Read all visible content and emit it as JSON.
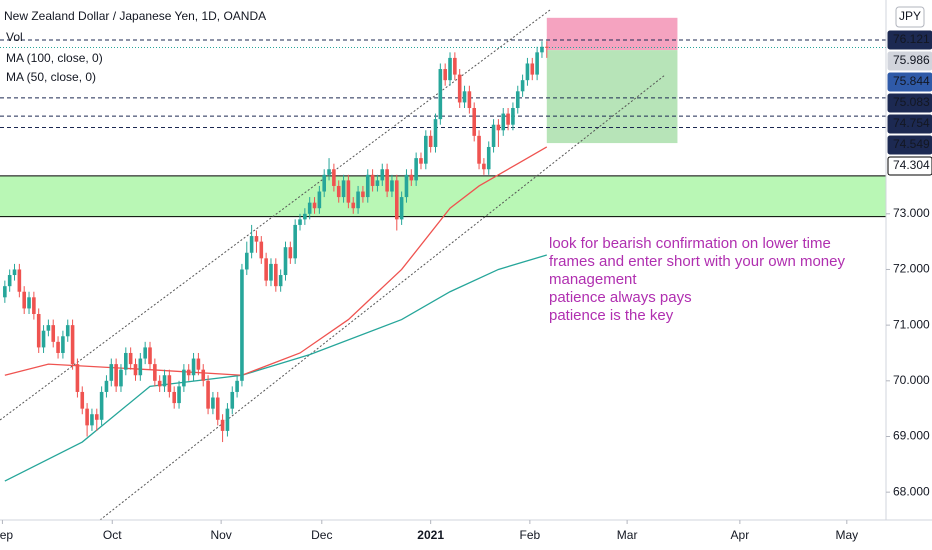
{
  "chart_data": {
    "type": "candlestick",
    "title": "New Zealand Dollar / Japanese Yen, 1D, OANDA",
    "volume_label": "Vol",
    "currency": "JPY",
    "up_color": "#26a69a",
    "down_color": "#ef5350",
    "open": [
      71.5,
      71.7,
      71.9,
      72.0,
      71.6,
      71.3,
      71.5,
      71.2,
      70.6,
      70.9,
      71.0,
      70.7,
      70.5,
      70.8,
      71.0,
      70.3,
      69.8,
      69.5,
      69.2,
      69.4,
      69.3,
      69.8,
      70.0,
      70.3,
      69.9,
      70.2,
      70.5,
      70.3,
      70.1,
      70.4,
      70.6,
      70.3,
      70.0,
      69.9,
      70.1,
      69.8,
      69.6,
      69.9,
      70.2,
      70.1,
      70.4,
      70.2,
      70.0,
      69.5,
      69.7,
      69.3,
      69.1,
      69.5,
      69.8,
      70.0,
      72.0,
      72.3,
      72.6,
      72.5,
      72.2,
      71.8,
      72.1,
      71.7,
      71.9,
      72.4,
      72.2,
      72.8,
      72.9,
      73.0,
      73.2,
      73.1,
      73.4,
      73.7,
      73.8,
      73.5,
      73.3,
      73.6,
      73.2,
      73.1,
      73.4,
      73.3,
      73.7,
      73.5,
      73.6,
      73.8,
      73.4,
      73.6,
      72.9,
      73.3,
      73.7,
      73.6,
      74.0,
      73.9,
      74.4,
      74.2,
      74.7,
      75.6,
      75.4,
      75.8,
      75.5,
      75.0,
      75.2,
      74.9,
      74.4,
      73.9,
      73.8,
      74.2,
      74.6,
      74.5,
      74.8,
      74.6,
      74.9,
      75.2,
      75.4,
      75.7,
      75.5,
      75.9,
      76.0
    ],
    "high": [
      71.8,
      72.0,
      72.1,
      72.1,
      71.7,
      71.6,
      71.6,
      71.3,
      71.0,
      71.1,
      71.1,
      70.8,
      70.9,
      71.1,
      71.1,
      70.4,
      69.9,
      69.6,
      69.5,
      69.5,
      69.9,
      70.1,
      70.4,
      70.4,
      70.3,
      70.6,
      70.6,
      70.4,
      70.5,
      70.7,
      70.7,
      70.4,
      70.1,
      70.2,
      70.2,
      69.9,
      70.0,
      70.3,
      70.3,
      70.5,
      70.5,
      70.3,
      70.1,
      69.8,
      69.8,
      69.4,
      69.6,
      69.9,
      70.1,
      72.1,
      72.5,
      72.8,
      72.7,
      72.6,
      72.3,
      72.2,
      72.2,
      72.0,
      72.5,
      72.5,
      72.9,
      73.0,
      73.1,
      73.3,
      73.3,
      73.5,
      73.8,
      74.0,
      73.9,
      73.6,
      73.7,
      73.7,
      73.3,
      73.5,
      73.5,
      73.8,
      73.8,
      73.7,
      73.9,
      73.9,
      73.7,
      73.7,
      73.4,
      73.8,
      73.8,
      74.1,
      74.1,
      74.5,
      74.5,
      74.8,
      75.7,
      75.7,
      75.9,
      75.9,
      75.6,
      75.3,
      75.3,
      75.0,
      74.5,
      74.0,
      74.3,
      74.7,
      74.7,
      74.9,
      74.9,
      75.0,
      75.3,
      75.5,
      75.8,
      75.8,
      76.0,
      76.1,
      76.1
    ],
    "low": [
      71.4,
      71.6,
      71.8,
      71.5,
      71.2,
      71.2,
      71.1,
      70.5,
      70.5,
      70.8,
      70.6,
      70.4,
      70.4,
      70.7,
      70.2,
      69.7,
      69.4,
      69.0,
      69.1,
      69.1,
      69.2,
      69.7,
      69.9,
      69.8,
      69.8,
      70.1,
      70.2,
      70.0,
      70.0,
      70.3,
      70.2,
      69.9,
      69.8,
      69.8,
      69.7,
      69.5,
      69.5,
      69.8,
      70.0,
      70.0,
      70.1,
      69.9,
      69.4,
      69.4,
      69.2,
      68.9,
      69.0,
      69.4,
      69.7,
      69.9,
      71.9,
      72.2,
      72.3,
      72.1,
      71.7,
      71.7,
      71.6,
      71.6,
      71.8,
      72.1,
      72.1,
      72.7,
      72.8,
      72.9,
      73.0,
      73.0,
      73.3,
      73.6,
      73.4,
      73.2,
      73.2,
      73.1,
      73.0,
      73.0,
      73.2,
      73.2,
      73.4,
      73.4,
      73.5,
      73.3,
      73.3,
      72.7,
      72.8,
      73.2,
      73.5,
      73.5,
      73.8,
      73.8,
      74.1,
      74.1,
      74.6,
      75.3,
      75.3,
      75.4,
      74.9,
      74.9,
      74.8,
      74.3,
      73.8,
      73.7,
      73.7,
      74.1,
      74.2,
      74.4,
      74.5,
      74.5,
      74.8,
      75.1,
      75.3,
      75.4,
      75.4,
      75.8,
      75.8
    ],
    "close": [
      71.7,
      71.9,
      72.0,
      71.6,
      71.3,
      71.5,
      71.2,
      70.6,
      70.9,
      71.0,
      70.7,
      70.5,
      70.8,
      71.0,
      70.3,
      69.8,
      69.5,
      69.2,
      69.4,
      69.3,
      69.8,
      70.0,
      70.3,
      69.9,
      70.2,
      70.5,
      70.3,
      70.1,
      70.4,
      70.6,
      70.3,
      70.0,
      69.9,
      70.1,
      69.8,
      69.6,
      69.9,
      70.2,
      70.1,
      70.4,
      70.2,
      70.0,
      69.5,
      69.7,
      69.3,
      69.1,
      69.5,
      69.8,
      70.0,
      72.0,
      72.3,
      72.6,
      72.5,
      72.2,
      71.8,
      72.1,
      71.7,
      71.9,
      72.4,
      72.2,
      72.8,
      72.9,
      73.0,
      73.2,
      73.1,
      73.4,
      73.7,
      73.8,
      73.5,
      73.3,
      73.6,
      73.2,
      73.1,
      73.4,
      73.3,
      73.7,
      73.5,
      73.6,
      73.8,
      73.4,
      73.6,
      72.9,
      73.3,
      73.7,
      73.6,
      74.0,
      73.9,
      74.4,
      74.2,
      74.7,
      75.6,
      75.4,
      75.8,
      75.5,
      75.0,
      75.2,
      74.9,
      74.4,
      73.9,
      73.8,
      74.2,
      74.6,
      74.5,
      74.8,
      74.6,
      74.9,
      75.2,
      75.4,
      75.7,
      75.5,
      75.9,
      76.0,
      75.986
    ],
    "series": [
      {
        "name": "MA (100, close, 0)",
        "color": "#26a69a",
        "x": [
          0,
          16,
          30,
          49,
          63,
          82,
          92,
          102,
          112
        ],
        "values": [
          68.2,
          68.9,
          69.9,
          70.1,
          70.47,
          71.1,
          71.6,
          72.0,
          72.26
        ]
      },
      {
        "name": "MA (50, close, 0)",
        "color": "#ef5350",
        "x": [
          0,
          9,
          30,
          49,
          61,
          71,
          82,
          92,
          98,
          106,
          112
        ],
        "values": [
          70.1,
          70.3,
          70.2,
          70.1,
          70.5,
          71.1,
          72.0,
          73.1,
          73.5,
          73.9,
          74.2
        ]
      }
    ],
    "xlim": [
      -1,
      182.1
    ],
    "ylim": [
      67.5,
      76.84
    ],
    "yticks": [
      {
        "value": 68,
        "label": "68.000"
      },
      {
        "value": 69,
        "label": "69.000"
      },
      {
        "value": 70,
        "label": "70.000"
      },
      {
        "value": 71,
        "label": "71.000"
      },
      {
        "value": 72,
        "label": "72.000"
      },
      {
        "value": 73,
        "label": "73.000"
      }
    ],
    "xticks": [
      {
        "value": -0.5,
        "label": "Sep"
      },
      {
        "value": 22.2,
        "label": "Oct"
      },
      {
        "value": 44.7,
        "label": "Nov"
      },
      {
        "value": 65.5,
        "label": "Dec"
      },
      {
        "value": 88,
        "label": "2021"
      },
      {
        "value": 108.5,
        "label": "Feb"
      },
      {
        "value": 128.6,
        "label": "Mar"
      },
      {
        "value": 151.9,
        "label": "Apr"
      },
      {
        "value": 174,
        "label": "May"
      }
    ],
    "levels": [
      {
        "value": 76.121,
        "bg": "#1c2952",
        "text_color": "#ffffff",
        "line": "dashed",
        "line_color": "#1c2952"
      },
      {
        "value": 75.986,
        "bg": "#d1d4dc",
        "text_color": "#131722",
        "line": "dotted",
        "line_color": "#26a69a"
      },
      {
        "value": 75.844,
        "bg": "#2f5aa8",
        "text_color": "#ffffff",
        "line": "none",
        "line_color": "#2f5aa8"
      },
      {
        "value": 75.083,
        "bg": "#1c2952",
        "text_color": "#ffffff",
        "line": "dashed",
        "line_color": "#1c2952"
      },
      {
        "value": 74.754,
        "bg": "#1c2952",
        "text_color": "#ffffff",
        "line": "dashed",
        "line_color": "#1c2952"
      },
      {
        "value": 74.549,
        "bg": "#1c2952",
        "text_color": "#ffffff",
        "line": "dashed",
        "line_color": "#1c2952"
      },
      {
        "value": 74.304,
        "bg": "#ffffff",
        "text_color": "#131722",
        "line": "none",
        "line_color": "#000000"
      }
    ],
    "zone": {
      "top": 73.68,
      "bottom": 72.95,
      "color": "#b9f7b5"
    },
    "short_position": {
      "x": [
        112,
        139
      ],
      "stop": 76.52,
      "entry": 75.94,
      "target": 74.27,
      "risk_color": "#f5a3c0",
      "reward_color": "#b7e4b8"
    },
    "annotation": [
      "look for bearish confirmation on lower time",
      "frames and enter short with your own money",
      "management",
      "patience always pays",
      "patience is the key"
    ],
    "annotation_color": "#b02fb0"
  }
}
